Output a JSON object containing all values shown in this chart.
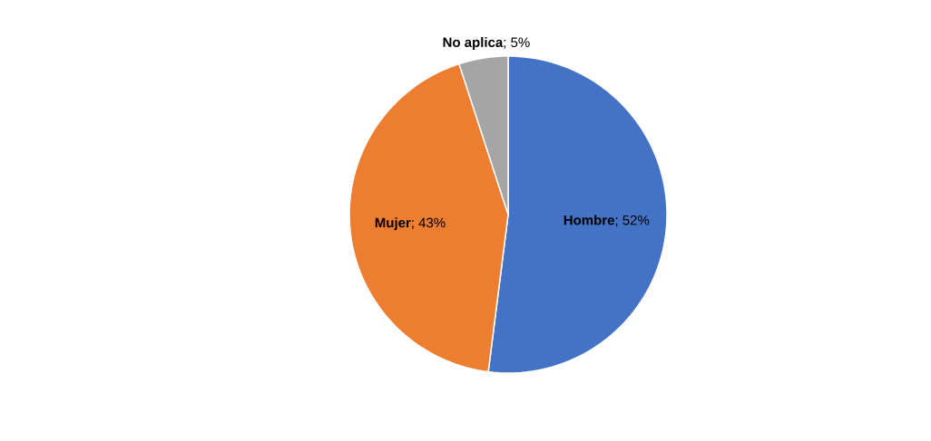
{
  "chart_data": {
    "type": "pie",
    "categories": [
      "Hombre",
      "Mujer",
      "No aplica"
    ],
    "values": [
      52,
      43,
      5
    ],
    "colors": [
      "#4472c4",
      "#ed7d31",
      "#a5a5a5"
    ],
    "value_labels": [
      "; 52%",
      "; 43%",
      "; 5%"
    ]
  }
}
